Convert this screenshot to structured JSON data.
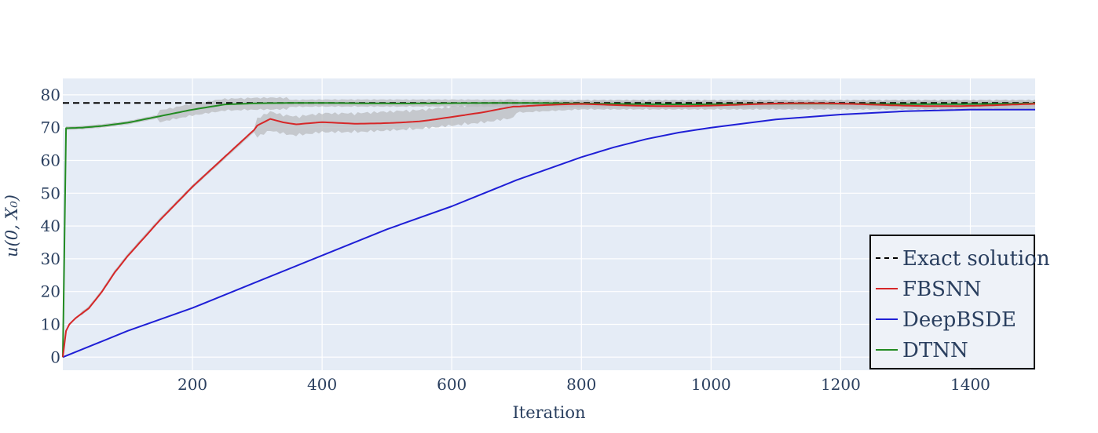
{
  "chart_data": {
    "type": "line",
    "title": "",
    "xlabel": "Iteration",
    "ylabel": "u(0, X₀)",
    "xlim": [
      0,
      1500
    ],
    "ylim": [
      -4,
      85
    ],
    "x_ticks": [
      200,
      400,
      600,
      800,
      1000,
      1200,
      1400
    ],
    "y_ticks": [
      0,
      10,
      20,
      30,
      40,
      50,
      60,
      70,
      80
    ],
    "grid": true,
    "legend_position": "bottom-right",
    "colors": {
      "exact": "#000000",
      "fbsnn": "#d62728",
      "deepbsde": "#1f1fd6",
      "dtnn": "#228b22",
      "band": "#b9bcbf",
      "plot_bg": "#e5ecf6"
    },
    "series": [
      {
        "name": "Exact solution",
        "style": "dashed",
        "x": [
          0,
          1500
        ],
        "y": [
          77.5,
          77.5
        ]
      },
      {
        "name": "FBSNN",
        "style": "solid",
        "x": [
          0,
          5,
          10,
          20,
          40,
          60,
          80,
          100,
          150,
          200,
          250,
          300,
          320,
          340,
          360,
          400,
          450,
          500,
          550,
          600,
          650,
          700,
          750,
          800,
          900,
          1000,
          1100,
          1200,
          1300,
          1400,
          1500
        ],
        "y": [
          0,
          8,
          10,
          12,
          15,
          20,
          26,
          31,
          42,
          52,
          61,
          70,
          72,
          71,
          70.5,
          71.5,
          71.5,
          72,
          72.5,
          73.5,
          74.5,
          76,
          76.5,
          77,
          77,
          77,
          77,
          77,
          77,
          77,
          77
        ]
      },
      {
        "name": "DeepBSDE",
        "style": "solid",
        "x": [
          0,
          50,
          100,
          200,
          300,
          400,
          500,
          600,
          700,
          800,
          850,
          900,
          950,
          1000,
          1100,
          1200,
          1300,
          1400,
          1500
        ],
        "y": [
          0,
          4,
          8,
          15,
          23,
          31,
          39,
          46,
          54,
          61,
          64,
          66.5,
          68.5,
          70,
          72.5,
          74,
          75,
          75.5,
          75.5
        ]
      },
      {
        "name": "DTNN",
        "style": "solid",
        "x": [
          0,
          1,
          2,
          30,
          60,
          100,
          150,
          200,
          250,
          300,
          400,
          500,
          600,
          700,
          800,
          1000,
          1200,
          1400,
          1500
        ],
        "y": [
          0,
          69.5,
          69.8,
          70,
          70.5,
          71.5,
          73.5,
          75.5,
          77,
          77.3,
          77.5,
          77.5,
          77.5,
          77.4,
          77.3,
          77.2,
          77.2,
          77.3,
          77.3
        ]
      }
    ]
  }
}
